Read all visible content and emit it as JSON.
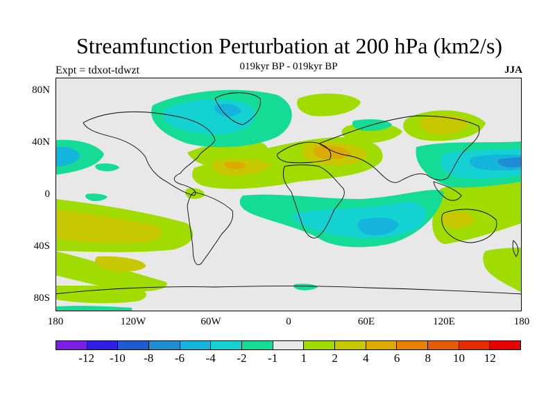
{
  "title": "Streamfunction Perturbation at 200 hPa (km2/s)",
  "subtitle": "019kyr BP - 019kyr BP",
  "left_label": "Expt = tdxot-tdwzt",
  "right_label": "JJA",
  "axes": {
    "y_ticks": [
      "80N",
      "40N",
      "0",
      "40S",
      "80S"
    ],
    "x_ticks": [
      "180",
      "120W",
      "60W",
      "0",
      "60E",
      "120E",
      "180"
    ]
  },
  "colors": {
    "background_field": "#e8e8e8",
    "coastline": "#000000"
  },
  "colorbar": {
    "colors": [
      "#7a1ee6",
      "#2f1ee6",
      "#1e5ad2",
      "#1e8cd2",
      "#14b4dc",
      "#14d2d2",
      "#14dc96",
      "#e8e8e8",
      "#a0dc00",
      "#c8c800",
      "#dcaa00",
      "#e68200",
      "#e65a00",
      "#e62d00",
      "#e60000"
    ],
    "labels": [
      "-12",
      "-10",
      "-8",
      "-6",
      "-4",
      "-2",
      "-1",
      "1",
      "2",
      "4",
      "6",
      "8",
      "10",
      "12"
    ]
  }
}
